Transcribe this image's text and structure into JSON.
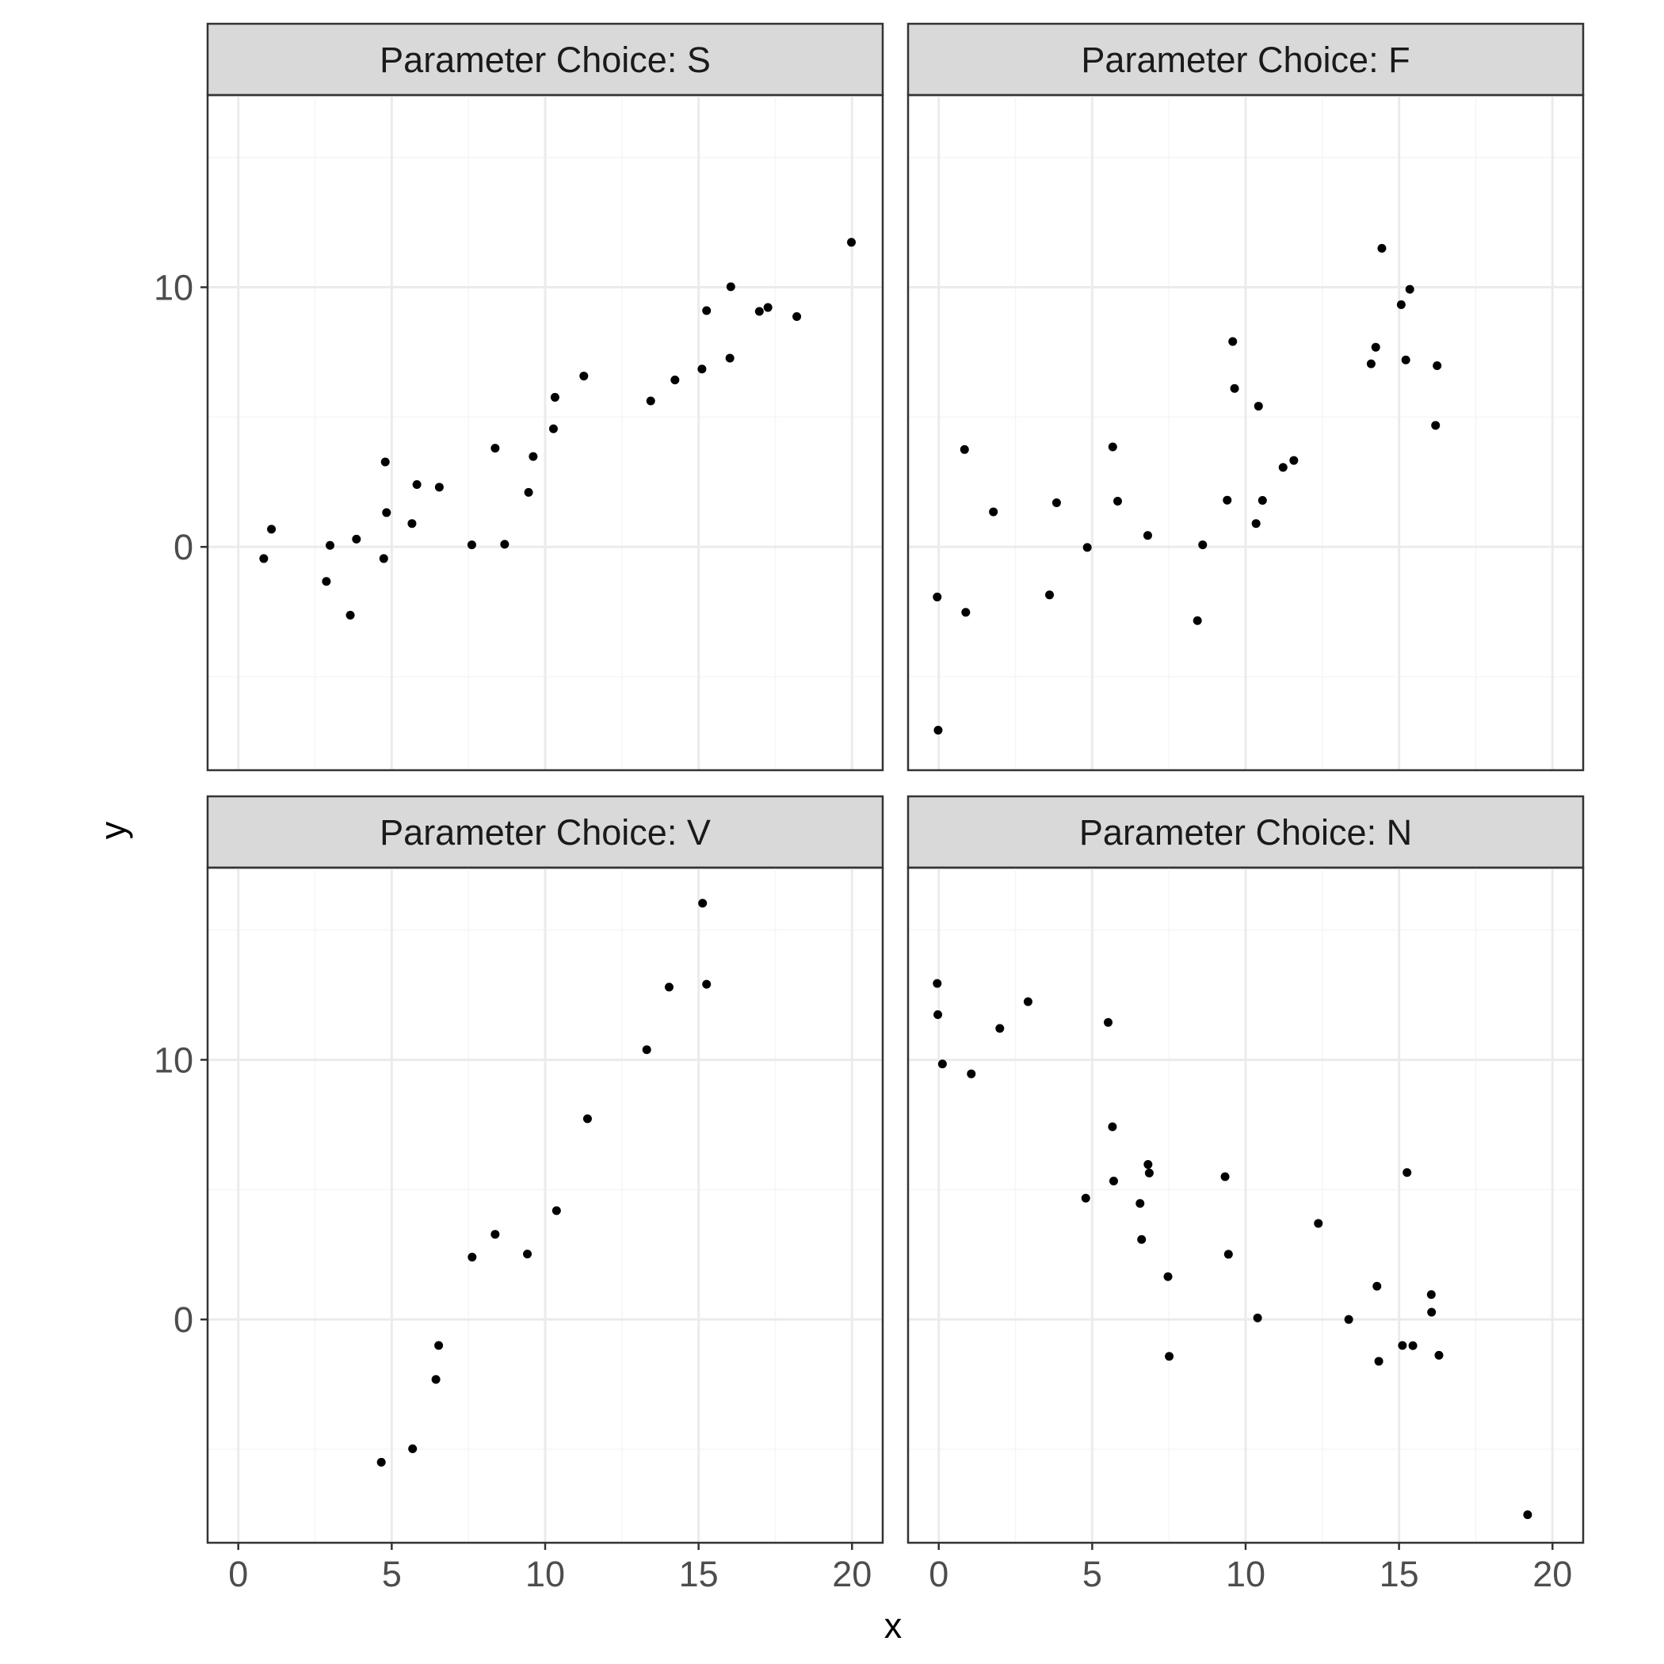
{
  "colors": {
    "background": "#ffffff",
    "panel_border": "#333333",
    "strip_fill": "#d9d9d9",
    "grid_major": "#ebebeb",
    "grid_minor": "#f5f5f5",
    "point": "#000000",
    "tick_text": "#4d4d4d"
  },
  "chart_data": {
    "type": "scatter",
    "facet_layout": "2x2",
    "xlabel": "x",
    "ylabel": "y",
    "xlim": [
      -1.0,
      21.0
    ],
    "ylim": [
      -8.6,
      17.4
    ],
    "x_ticks": [
      0,
      5,
      10,
      15,
      20
    ],
    "y_ticks": [
      0,
      10
    ],
    "x_tick_labels": [
      "0",
      "5",
      "10",
      "15",
      "20"
    ],
    "y_tick_labels": [
      "0",
      "10"
    ],
    "grid": true,
    "legend": "none",
    "panels": [
      {
        "strip": "Parameter Choice: S",
        "points": [
          [
            0.83,
            -0.45
          ],
          [
            1.08,
            0.68
          ],
          [
            2.87,
            -1.33
          ],
          [
            2.99,
            0.06
          ],
          [
            3.65,
            -2.63
          ],
          [
            3.85,
            0.3
          ],
          [
            4.74,
            -0.45
          ],
          [
            4.79,
            3.27
          ],
          [
            4.83,
            1.32
          ],
          [
            5.66,
            0.9
          ],
          [
            5.82,
            2.4
          ],
          [
            6.55,
            2.3
          ],
          [
            7.61,
            0.08
          ],
          [
            8.37,
            3.8
          ],
          [
            8.68,
            0.1
          ],
          [
            9.46,
            2.1
          ],
          [
            9.61,
            3.48
          ],
          [
            10.27,
            4.55
          ],
          [
            10.32,
            5.76
          ],
          [
            11.26,
            6.58
          ],
          [
            13.44,
            5.62
          ],
          [
            14.23,
            6.43
          ],
          [
            15.11,
            6.85
          ],
          [
            15.26,
            9.1
          ],
          [
            16.02,
            7.27
          ],
          [
            16.05,
            10.02
          ],
          [
            16.98,
            9.07
          ],
          [
            17.26,
            9.22
          ],
          [
            18.2,
            8.87
          ],
          [
            19.98,
            11.73
          ]
        ]
      },
      {
        "strip": "Parameter Choice: F",
        "points": [
          [
            -0.05,
            -1.93
          ],
          [
            -0.02,
            -7.06
          ],
          [
            0.84,
            3.75
          ],
          [
            0.88,
            -2.52
          ],
          [
            1.78,
            1.35
          ],
          [
            3.61,
            -1.85
          ],
          [
            3.84,
            1.7
          ],
          [
            4.84,
            -0.02
          ],
          [
            5.67,
            3.85
          ],
          [
            5.83,
            1.76
          ],
          [
            6.81,
            0.44
          ],
          [
            8.43,
            -2.84
          ],
          [
            8.6,
            0.08
          ],
          [
            9.4,
            1.8
          ],
          [
            9.58,
            7.91
          ],
          [
            9.64,
            6.1
          ],
          [
            10.34,
            0.9
          ],
          [
            10.42,
            5.42
          ],
          [
            10.55,
            1.79
          ],
          [
            11.22,
            3.06
          ],
          [
            11.57,
            3.33
          ],
          [
            14.09,
            7.05
          ],
          [
            14.24,
            7.69
          ],
          [
            14.44,
            11.5
          ],
          [
            15.07,
            9.33
          ],
          [
            15.22,
            7.2
          ],
          [
            15.35,
            9.92
          ],
          [
            16.19,
            4.68
          ],
          [
            16.24,
            6.98
          ]
        ]
      },
      {
        "strip": "Parameter Choice: V",
        "points": [
          [
            4.66,
            -5.5
          ],
          [
            5.68,
            -4.98
          ],
          [
            6.44,
            -2.31
          ],
          [
            6.53,
            -1.0
          ],
          [
            7.62,
            2.4
          ],
          [
            8.37,
            3.28
          ],
          [
            9.42,
            2.52
          ],
          [
            10.37,
            4.19
          ],
          [
            11.38,
            7.73
          ],
          [
            13.31,
            10.39
          ],
          [
            14.04,
            12.8
          ],
          [
            15.13,
            16.03
          ],
          [
            15.26,
            12.91
          ]
        ]
      },
      {
        "strip": "Parameter Choice: N",
        "points": [
          [
            -0.05,
            12.94
          ],
          [
            -0.03,
            11.74
          ],
          [
            0.12,
            9.84
          ],
          [
            1.06,
            9.46
          ],
          [
            1.99,
            11.21
          ],
          [
            2.91,
            12.24
          ],
          [
            4.79,
            4.67
          ],
          [
            5.52,
            11.44
          ],
          [
            5.66,
            7.42
          ],
          [
            5.7,
            5.33
          ],
          [
            6.56,
            4.47
          ],
          [
            6.61,
            3.08
          ],
          [
            6.82,
            5.97
          ],
          [
            6.86,
            5.64
          ],
          [
            7.47,
            1.65
          ],
          [
            7.51,
            -1.42
          ],
          [
            9.33,
            5.5
          ],
          [
            9.44,
            2.51
          ],
          [
            10.39,
            0.06
          ],
          [
            12.37,
            3.7
          ],
          [
            13.36,
            0.0
          ],
          [
            14.28,
            1.28
          ],
          [
            14.34,
            -1.61
          ],
          [
            15.11,
            -1.0
          ],
          [
            15.26,
            5.66
          ],
          [
            15.45,
            -1.01
          ],
          [
            16.05,
            0.96
          ],
          [
            16.06,
            0.28
          ],
          [
            16.3,
            -1.38
          ],
          [
            19.19,
            -7.52
          ]
        ]
      }
    ]
  }
}
